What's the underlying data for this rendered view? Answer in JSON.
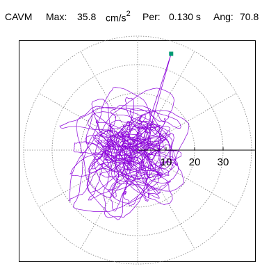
{
  "header": {
    "label": "CAVM",
    "max_label": "Max:",
    "max_value": "35.8",
    "max_unit": "cm/s",
    "max_unit_exp": "2",
    "per_label": "Per:",
    "per_value": "0.130 s",
    "ang_label": "Ang:",
    "ang_value": "70.8"
  },
  "colors": {
    "trace": "#8b00d9",
    "grid": "#808080",
    "marker": "#009a73",
    "axis": "#000000",
    "frame": "#000000"
  },
  "chart_data": {
    "type": "scatter",
    "coordinate_system": "polar",
    "radial_ticks": [
      10,
      20,
      30
    ],
    "radial_range": [
      0,
      40
    ],
    "angular_gridline_step_deg": 30,
    "grid": true,
    "peak": {
      "magnitude": 35.8,
      "angle_deg": 70.8
    },
    "xlim": [
      -40,
      40
    ],
    "ylim": [
      -40,
      40
    ]
  }
}
